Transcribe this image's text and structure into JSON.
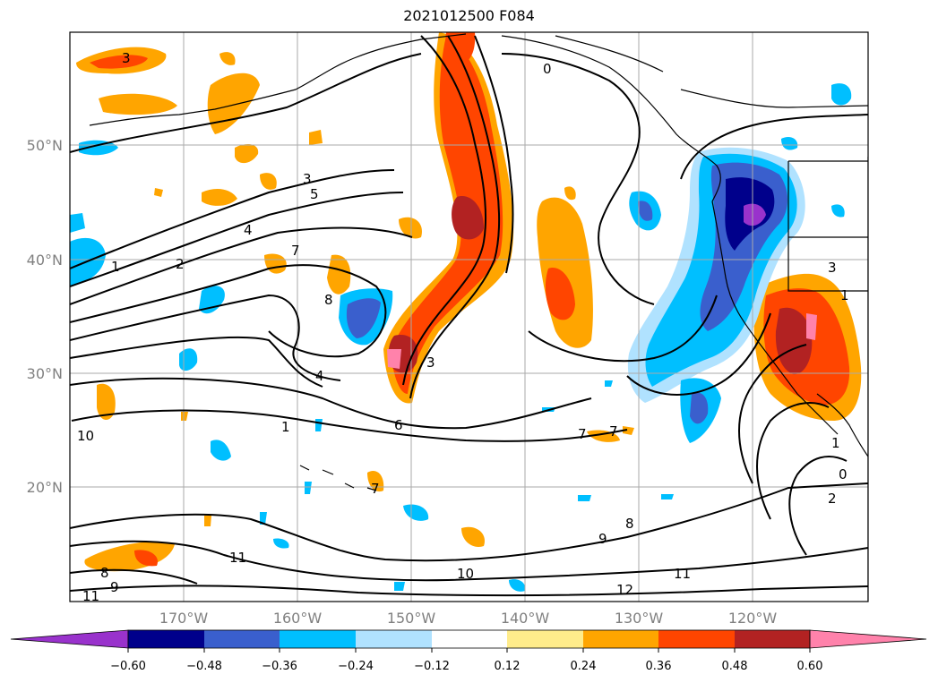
{
  "title": "2021012500 F084",
  "lat_labels": [
    "50°N",
    "40°N",
    "30°N",
    "20°N"
  ],
  "lon_labels": [
    "170°W",
    "160°W",
    "150°W",
    "140°W",
    "130°W",
    "120°W"
  ],
  "colorbar": {
    "colors": [
      "#9932cc",
      "#00008b",
      "#3a5fcd",
      "#00bfff",
      "#b0e2ff",
      "#ffffff",
      "#ffec8b",
      "#ffa500",
      "#ff4500",
      "#b22222",
      "#ff82ab"
    ],
    "ticks": [
      "−0.60",
      "−0.48",
      "−0.36",
      "−0.24",
      "−0.12",
      "0.12",
      "0.24",
      "0.36",
      "0.48",
      "0.60"
    ]
  },
  "contour_labels": [
    "3",
    "0",
    "3",
    "5",
    "4",
    "2",
    "1",
    "7",
    "8",
    "4",
    "3",
    "6",
    "7",
    "7",
    "10",
    "1",
    "7",
    "9",
    "8",
    "11",
    "8",
    "9",
    "10",
    "11",
    "12",
    "11",
    "1",
    "0",
    "2",
    "3",
    "1"
  ]
}
